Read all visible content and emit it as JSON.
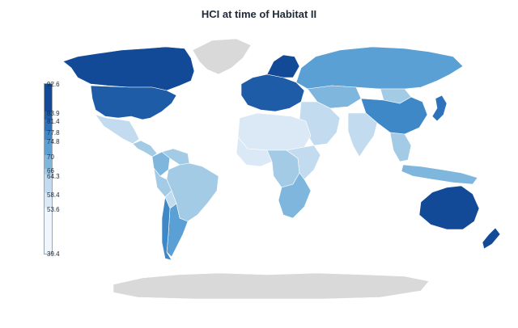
{
  "title": "HCI at time of Habitat II",
  "colors": {
    "no_data": "#d9d9d9",
    "scale": [
      "#f1f6fc",
      "#dbe9f6",
      "#c3dbef",
      "#a3cbe6",
      "#7fb6de",
      "#5aa0d4",
      "#3f88c8",
      "#2d72ba",
      "#1f5ca8",
      "#134a97"
    ]
  },
  "legend": {
    "ticks": [
      "92.6",
      "83.9",
      "81.4",
      "77.8",
      "74.8",
      "70",
      "66",
      "64.3",
      "58.4",
      "53.6",
      "39.4"
    ]
  },
  "regions": [
    {
      "name": "Greenland",
      "class": "no-data"
    },
    {
      "name": "Canada",
      "class": 9
    },
    {
      "name": "United States",
      "class": 8
    },
    {
      "name": "Mexico",
      "class": 2
    },
    {
      "name": "Central America",
      "class": 3
    },
    {
      "name": "Colombia",
      "class": 4
    },
    {
      "name": "Venezuela",
      "class": 3
    },
    {
      "name": "Brazil",
      "class": 3
    },
    {
      "name": "Peru",
      "class": 3
    },
    {
      "name": "Bolivia",
      "class": 2
    },
    {
      "name": "Argentina",
      "class": 5
    },
    {
      "name": "Chile",
      "class": 6
    },
    {
      "name": "Europe",
      "class": 8
    },
    {
      "name": "Scandinavia",
      "class": 9
    },
    {
      "name": "Russia",
      "class": 5
    },
    {
      "name": "Kazakhstan",
      "class": 4
    },
    {
      "name": "Mongolia",
      "class": 3
    },
    {
      "name": "China",
      "class": 6
    },
    {
      "name": "Middle East",
      "class": 2
    },
    {
      "name": "India",
      "class": 2
    },
    {
      "name": "Southeast Asia",
      "class": 3
    },
    {
      "name": "Japan",
      "class": 7
    },
    {
      "name": "North Africa",
      "class": 1
    },
    {
      "name": "West Africa",
      "class": 1
    },
    {
      "name": "Central Africa",
      "class": 3
    },
    {
      "name": "East Africa",
      "class": 2
    },
    {
      "name": "Southern Africa",
      "class": 4
    },
    {
      "name": "Indonesia",
      "class": 4
    },
    {
      "name": "Australia",
      "class": 9
    },
    {
      "name": "New Zealand",
      "class": 9
    },
    {
      "name": "Antarctica",
      "class": "no-data"
    }
  ]
}
